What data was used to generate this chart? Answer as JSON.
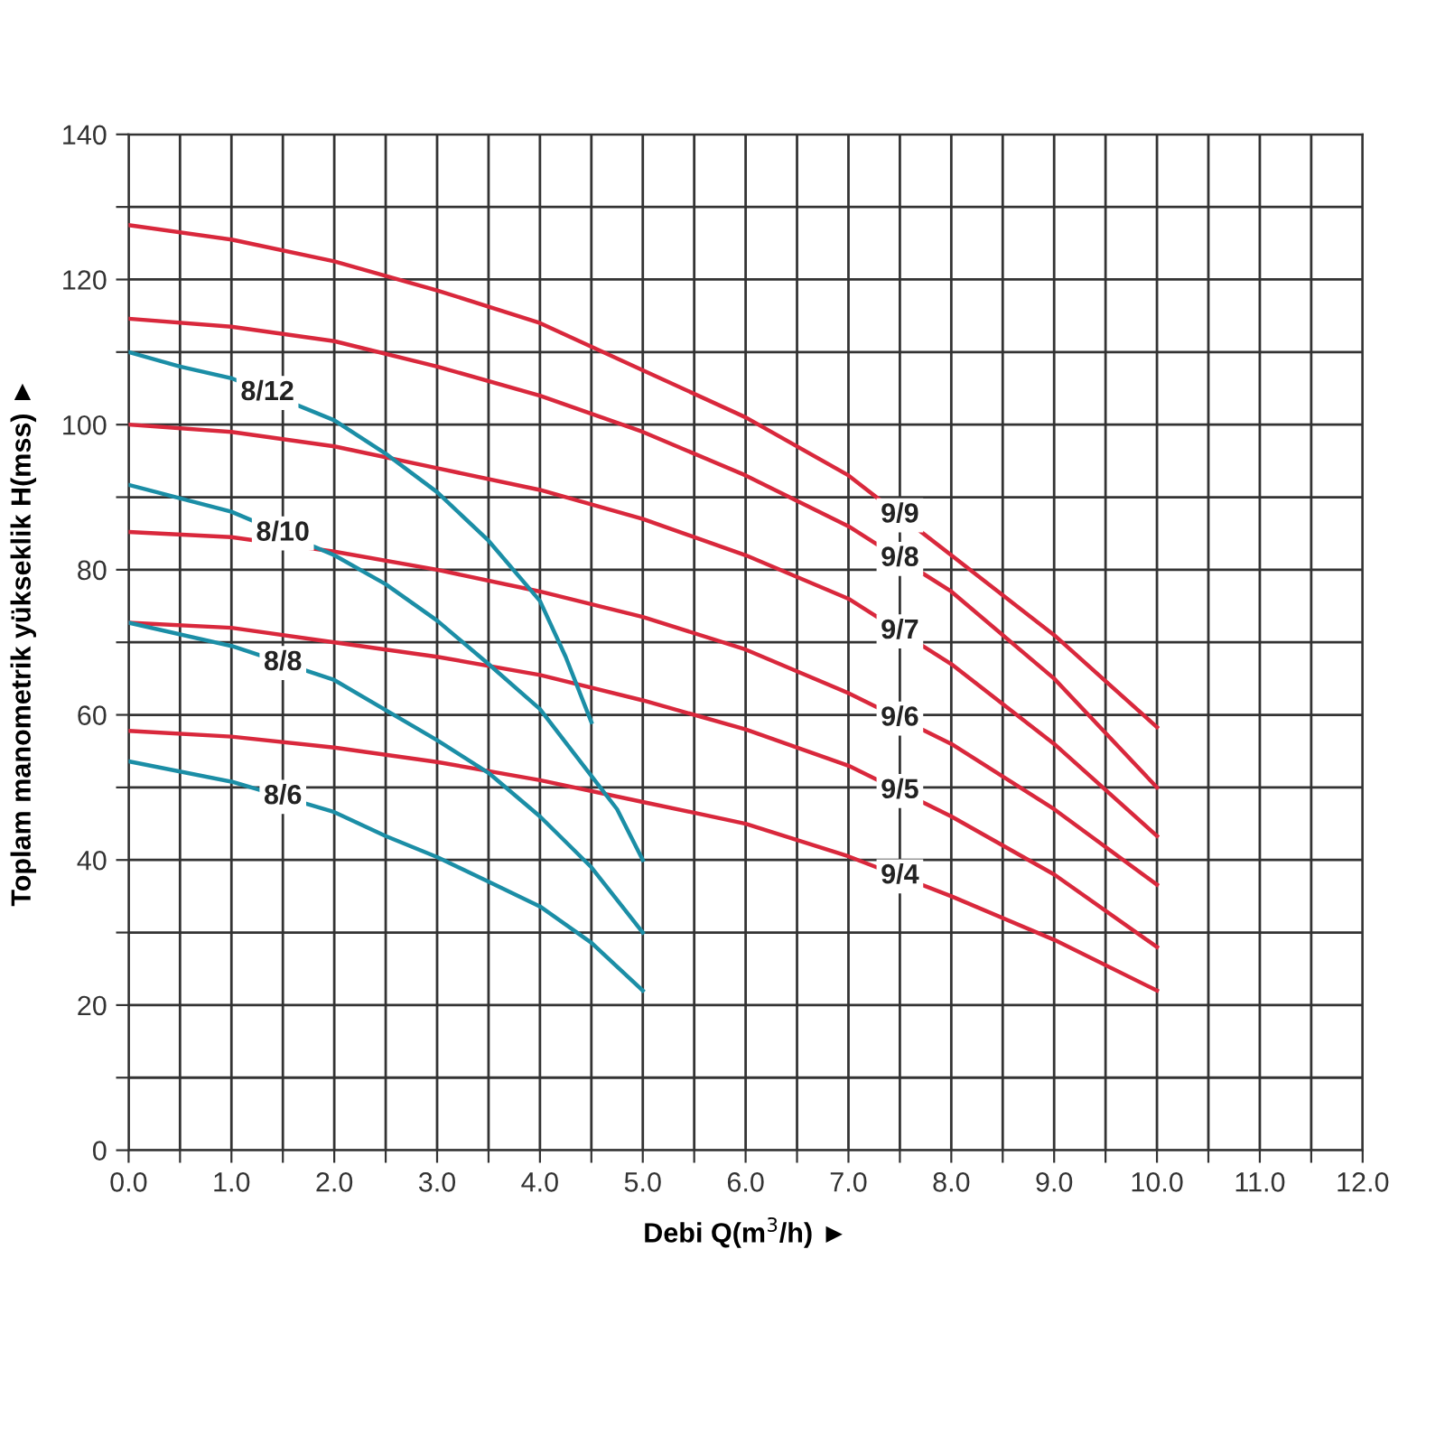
{
  "chart_data": {
    "type": "line",
    "xlabel": "Debi Q(m$^{3}$/h) ►",
    "ylabel": "Toplam manometrik yükseklik H(mss) ►",
    "xlim": [
      0,
      12
    ],
    "ylim": [
      0,
      140
    ],
    "xticks": [
      {
        "value": 0,
        "label": "0.0"
      },
      {
        "value": 0.5,
        "label": null
      },
      {
        "value": 1,
        "label": "1.0"
      },
      {
        "value": 1.5,
        "label": null
      },
      {
        "value": 2,
        "label": "2.0"
      },
      {
        "value": 2.5,
        "label": null
      },
      {
        "value": 3,
        "label": "3.0"
      },
      {
        "value": 3.5,
        "label": null
      },
      {
        "value": 4,
        "label": "4.0"
      },
      {
        "value": 4.5,
        "label": null
      },
      {
        "value": 5,
        "label": "5.0"
      },
      {
        "value": 5.5,
        "label": null
      },
      {
        "value": 6,
        "label": "6.0"
      },
      {
        "value": 6.5,
        "label": null
      },
      {
        "value": 7,
        "label": "7.0"
      },
      {
        "value": 7.5,
        "label": null
      },
      {
        "value": 8,
        "label": "8.0"
      },
      {
        "value": 8.5,
        "label": null
      },
      {
        "value": 9,
        "label": "9.0"
      },
      {
        "value": 9.5,
        "label": null
      },
      {
        "value": 10,
        "label": "10.0"
      },
      {
        "value": 10.5,
        "label": null
      },
      {
        "value": 11,
        "label": "11.0"
      },
      {
        "value": 11.5,
        "label": null
      },
      {
        "value": 12,
        "label": "12.0"
      }
    ],
    "yticks": [
      0,
      {
        "value": 10,
        "label": null
      },
      20,
      {
        "value": 30,
        "label": null
      },
      40,
      {
        "value": 50,
        "label": null
      },
      60,
      {
        "value": 70,
        "label": null
      },
      80,
      {
        "value": 90,
        "label": null
      },
      100,
      {
        "value": 110,
        "label": null
      },
      120,
      {
        "value": 130,
        "label": null
      },
      140
    ],
    "grid": true,
    "marker": "none",
    "line_style": "solid",
    "series": [
      {
        "name": "9/9",
        "color": "#d9283c",
        "x": [
          0,
          1,
          2,
          3,
          4,
          5,
          6,
          7,
          8,
          9,
          10
        ],
        "values": [
          127.5,
          125.5,
          122.5,
          118.5,
          114,
          107.5,
          101,
          93,
          82,
          71,
          58.3
        ]
      },
      {
        "name": "9/8",
        "color": "#d9283c",
        "x": [
          0,
          1,
          2,
          3,
          4,
          5,
          6,
          7,
          8,
          9,
          10
        ],
        "values": [
          114.6,
          113.5,
          111.5,
          108,
          104,
          99,
          93,
          86,
          77,
          65,
          50
        ]
      },
      {
        "name": "9/7",
        "color": "#d9283c",
        "x": [
          0,
          1,
          2,
          3,
          4,
          5,
          6,
          7,
          8,
          9,
          10
        ],
        "values": [
          100,
          99,
          97,
          94,
          91,
          87,
          82,
          76,
          67,
          56,
          43.3
        ]
      },
      {
        "name": "9/6",
        "color": "#d9283c",
        "x": [
          0,
          1,
          2,
          3,
          4,
          5,
          6,
          7,
          8,
          9,
          10
        ],
        "values": [
          85.2,
          84.5,
          82.5,
          80,
          77,
          73.5,
          69,
          63,
          56,
          47,
          36.6
        ]
      },
      {
        "name": "9/5",
        "color": "#d9283c",
        "x": [
          0,
          1,
          2,
          3,
          4,
          5,
          6,
          7,
          8,
          9,
          10
        ],
        "values": [
          72.7,
          72,
          70,
          68,
          65.5,
          62,
          58,
          53,
          46,
          38,
          28
        ]
      },
      {
        "name": "9/4",
        "color": "#d9283c",
        "x": [
          0,
          1,
          2,
          3,
          4,
          5,
          6,
          7,
          8,
          9,
          10
        ],
        "values": [
          57.8,
          57,
          55.5,
          53.5,
          51,
          48,
          45,
          40.5,
          35,
          29,
          22
        ]
      },
      {
        "name": "8/12",
        "color": "#1b8ea6",
        "x": [
          0,
          0.5,
          1,
          2,
          2.5,
          3,
          3.5,
          4,
          4.25,
          4.5
        ],
        "values": [
          110,
          108,
          106.4,
          100.6,
          96,
          90.7,
          84,
          75.7,
          68,
          59
        ]
      },
      {
        "name": "8/10",
        "color": "#1b8ea6",
        "x": [
          0,
          1,
          2,
          2.5,
          3,
          3.5,
          4,
          4.5,
          4.75,
          5
        ],
        "values": [
          91.7,
          88,
          82,
          78,
          73,
          67,
          60.8,
          51.6,
          47,
          40
        ]
      },
      {
        "name": "8/8",
        "color": "#1b8ea6",
        "x": [
          0,
          1,
          2,
          3,
          3.5,
          4,
          4.5,
          5
        ],
        "values": [
          72.7,
          69.5,
          64.8,
          56.5,
          52,
          46,
          39,
          30
        ]
      },
      {
        "name": "8/6",
        "color": "#1b8ea6",
        "x": [
          0,
          1,
          2,
          2.5,
          3,
          3.5,
          4,
          4.5,
          5
        ],
        "values": [
          53.6,
          50.8,
          46.6,
          43.3,
          40.4,
          37,
          33.6,
          28.6,
          22
        ]
      }
    ]
  }
}
